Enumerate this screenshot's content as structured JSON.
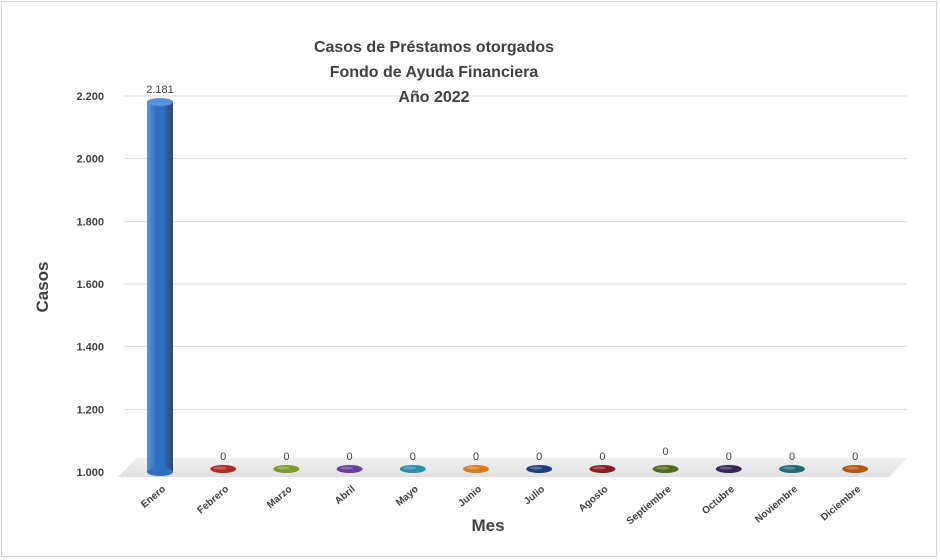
{
  "chart_data": {
    "type": "bar",
    "title_lines": [
      "Casos de Préstamos otorgados",
      "Fondo de Ayuda Financiera",
      "Año 2022"
    ],
    "xlabel": "Mes",
    "ylabel": "Casos",
    "categories": [
      "Enero",
      "Febrero",
      "Marzo",
      "Abril",
      "Mayo",
      "Junio",
      "Julio",
      "Agosto",
      "Septiembre",
      "Octubre",
      "Noviembre",
      "Diciembre"
    ],
    "values": [
      2181,
      0,
      0,
      0,
      0,
      0,
      0,
      0,
      0,
      0,
      0,
      0
    ],
    "data_labels": [
      "2.181",
      "0",
      "0",
      "0",
      "0",
      "0",
      "0",
      "0",
      "0",
      "0",
      "0",
      "0"
    ],
    "ylim": [
      1000,
      2200
    ],
    "yticks": [
      1000,
      1200,
      1400,
      1600,
      1800,
      2000,
      2200
    ],
    "ytick_labels": [
      "1.000",
      "1.200",
      "1.400",
      "1.600",
      "1.800",
      "2.000",
      "2.200"
    ],
    "grid": true,
    "legend": false,
    "colors": [
      "#2e6fc4",
      "#b02a2a",
      "#7a9a2e",
      "#6b3d98",
      "#2a8fa8",
      "#d97a1e",
      "#1f3f7a",
      "#8a1f1f",
      "#4e6b1e",
      "#3a245c",
      "#1e6a7a",
      "#b05a10"
    ]
  }
}
